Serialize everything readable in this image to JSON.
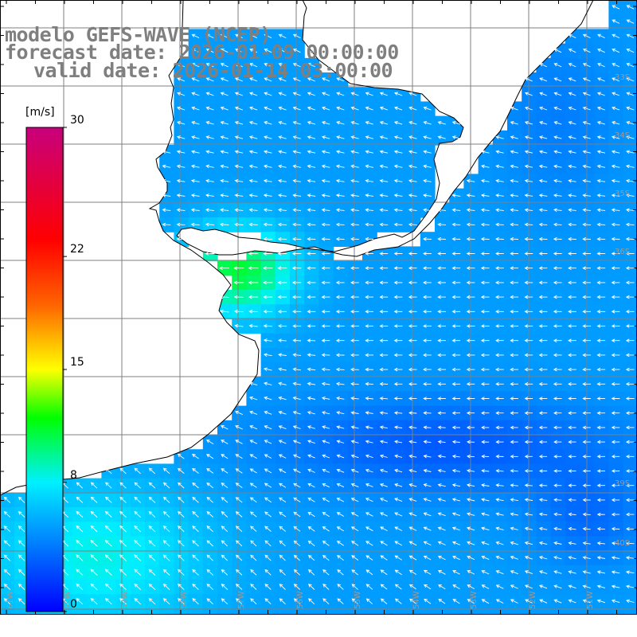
{
  "titles": {
    "model": "modelo GEFS-WAVE (NCEP)",
    "forecast_date": "forecast date: 2026-01-09 00:00:00",
    "valid_date": "valid date: 2026-01-14 03:00:00"
  },
  "colorbar": {
    "unit": "[m/s]",
    "min": 0,
    "max": 30,
    "tick_labels": [
      {
        "value": 30,
        "label": "30"
      },
      {
        "value": 22,
        "label": "22"
      },
      {
        "value": 15,
        "label": "15"
      },
      {
        "value": 8,
        "label": "8"
      },
      {
        "value": 0,
        "label": "0"
      }
    ],
    "colors": [
      "#0000ff",
      "#0078ff",
      "#00f0ff",
      "#00ff00",
      "#ffff00",
      "#ff6400",
      "#ff0000",
      "#c8007d"
    ]
  },
  "map": {
    "parameter": "wind speed and direction",
    "land_color": "#ffffff",
    "coast_color": "#000000",
    "grid_color": "#7f7f7f",
    "arrow_color": "#ffffff",
    "lat_labels": [
      "33S",
      "34S",
      "35S",
      "36S",
      "39S",
      "40S"
    ],
    "lon_labels": [
      "61W",
      "60W",
      "59W",
      "58W",
      "57W",
      "56W",
      "55W",
      "54W",
      "53W",
      "52W",
      "51W"
    ],
    "wind_direction": "westward"
  }
}
